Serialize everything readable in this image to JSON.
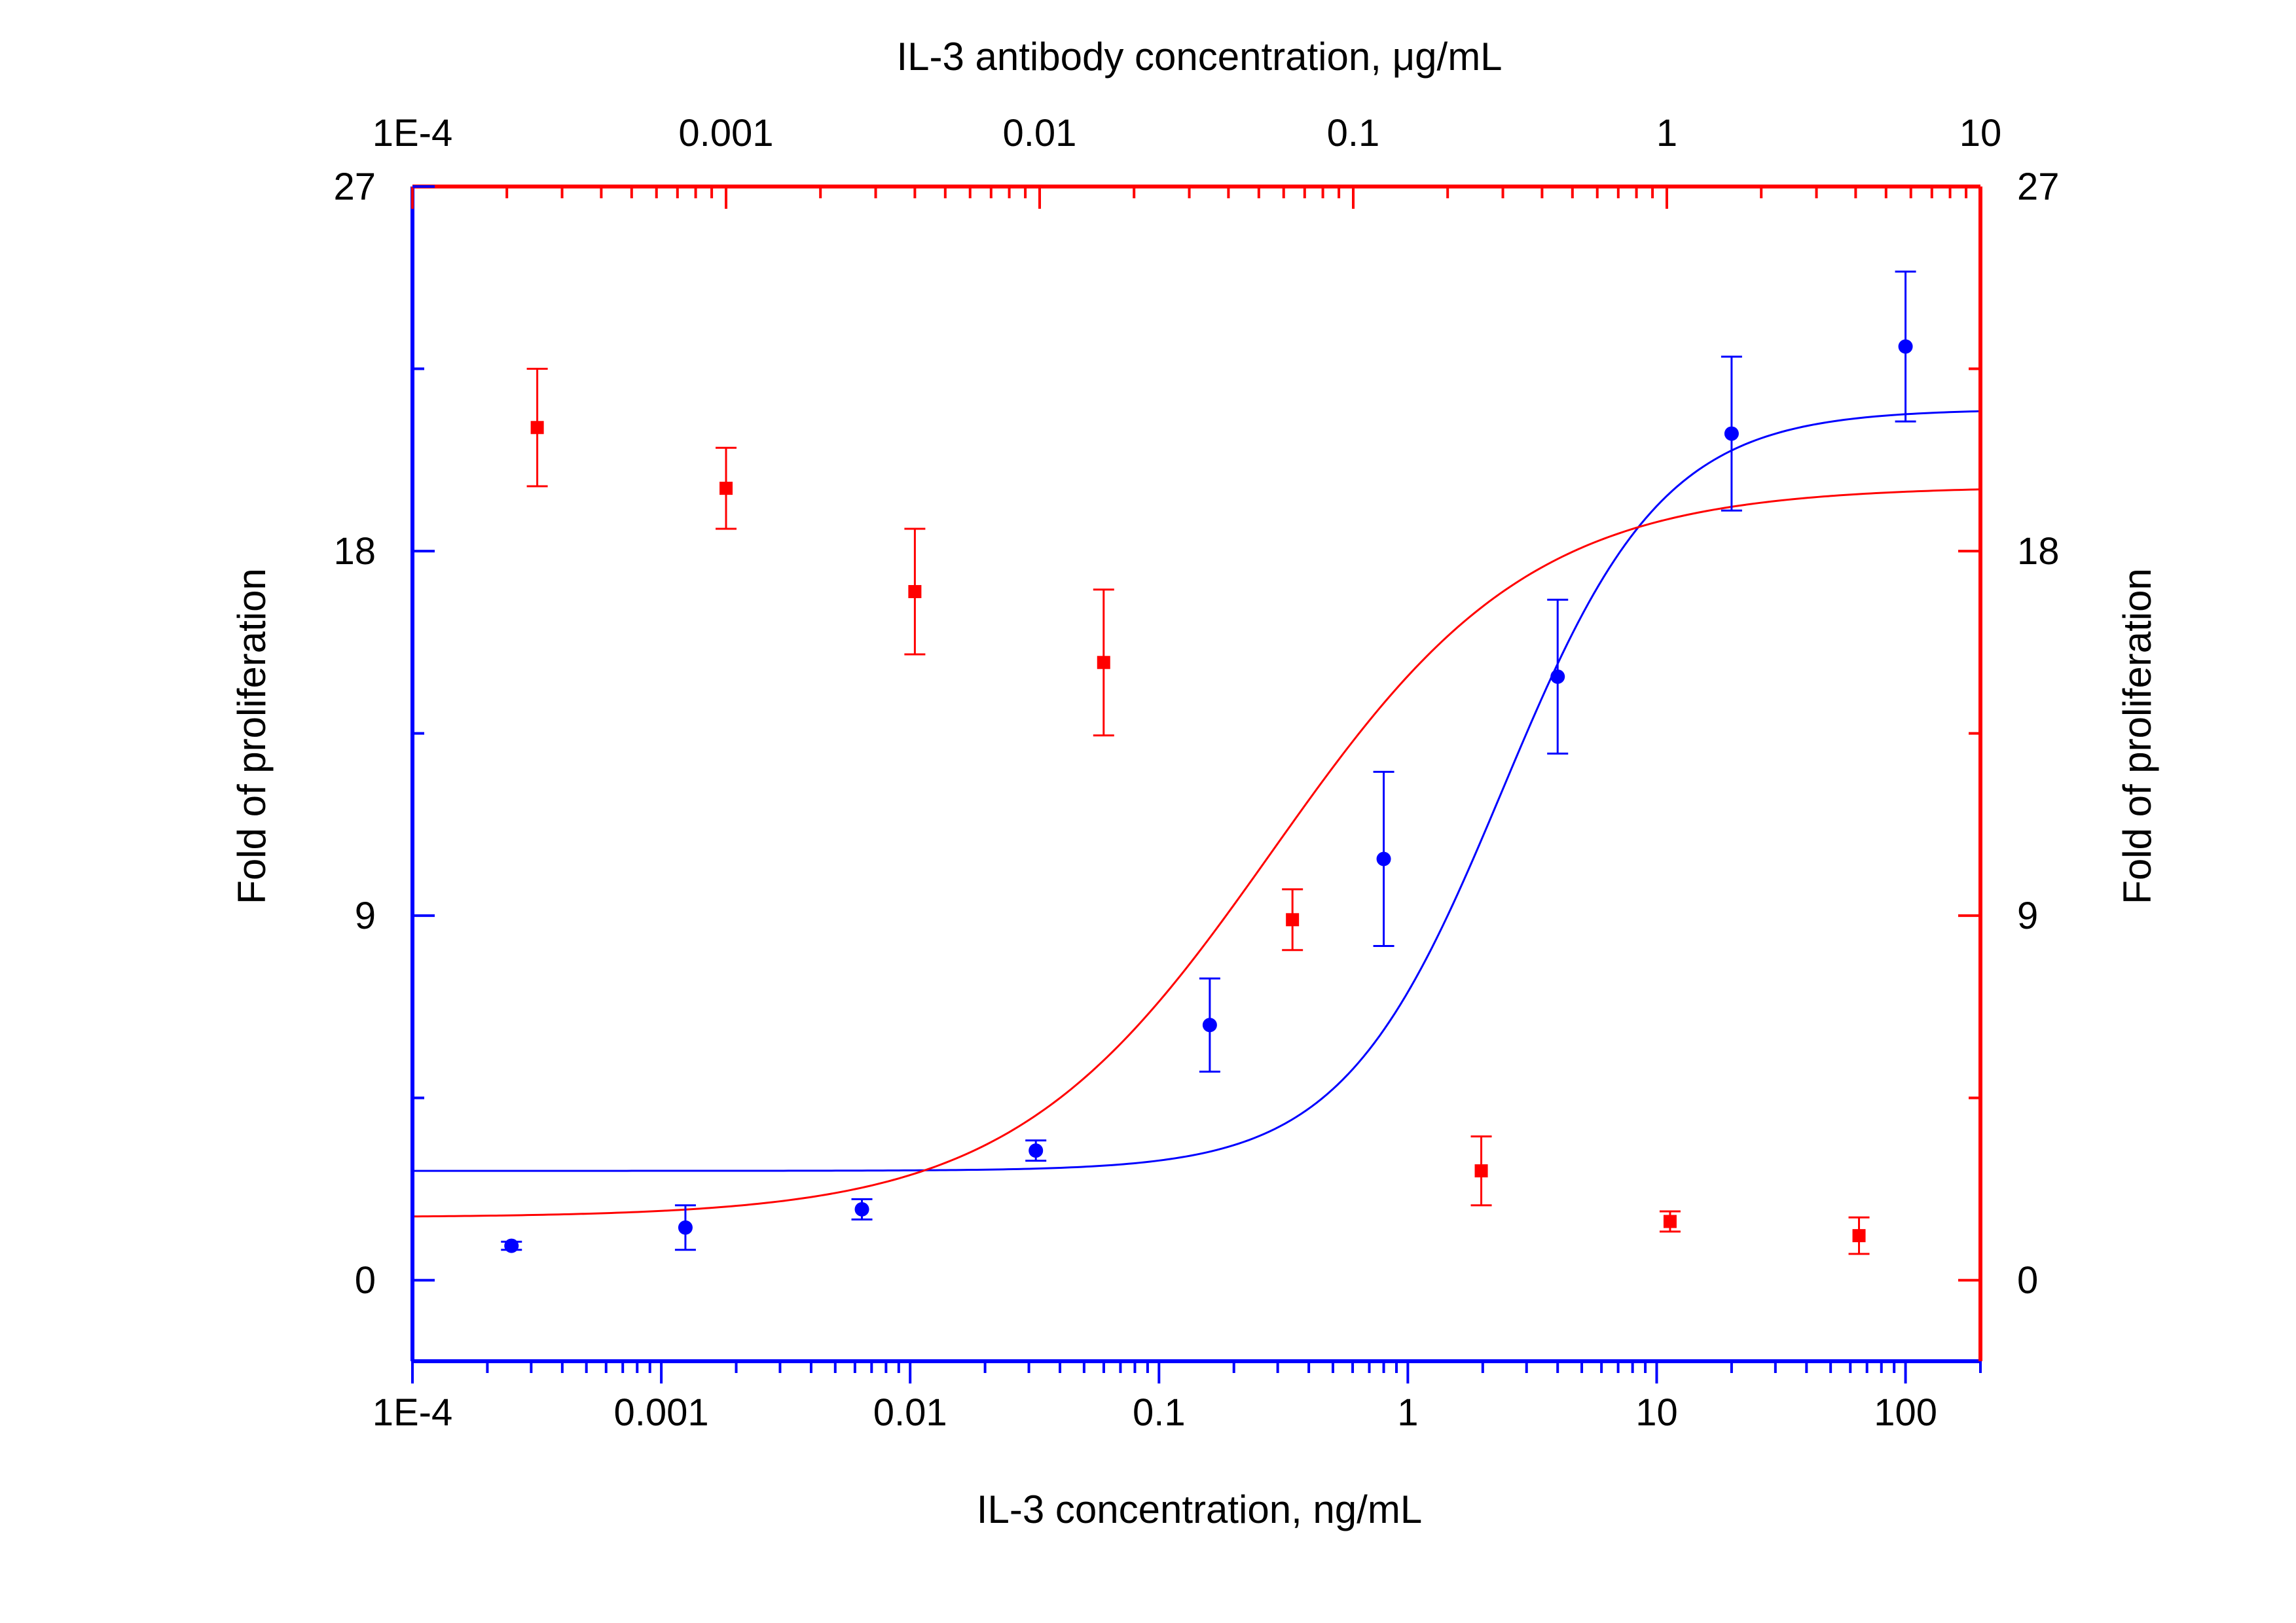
{
  "chart_data": {
    "type": "scatter",
    "colors": {
      "blue": "#0000FF",
      "red": "#FF0000",
      "text": "#000000",
      "background": "#FFFFFF"
    },
    "axes": {
      "bottom": {
        "label": "IL-3 concentration, ng/mL",
        "scale": "log",
        "range": [
          0.0001,
          200
        ],
        "ticks": [
          0.0001,
          0.001,
          0.01,
          0.1,
          1,
          10,
          100
        ],
        "tick_labels": [
          "1E-4",
          "0.001",
          "0.01",
          "0.1",
          "1",
          "10",
          "100"
        ],
        "color": "#0000FF"
      },
      "top": {
        "label": "IL-3 antibody concentration, μg/mL",
        "scale": "log",
        "range": [
          0.0001,
          10
        ],
        "ticks": [
          0.0001,
          0.001,
          0.01,
          0.1,
          1,
          10
        ],
        "tick_labels": [
          "1E-4",
          "0.001",
          "0.01",
          "0.1",
          "1",
          "10"
        ],
        "color": "#FF0000"
      },
      "left": {
        "label": "Fold of proliferation",
        "scale": "linear",
        "range": [
          -2,
          27
        ],
        "ticks": [
          0,
          9,
          18,
          27
        ],
        "tick_labels": [
          "0",
          "9",
          "18",
          "27"
        ],
        "color": "#0000FF"
      },
      "right": {
        "label": "Fold of proliferation",
        "scale": "linear",
        "range": [
          -2,
          27
        ],
        "ticks": [
          0,
          9,
          18,
          27
        ],
        "tick_labels": [
          "0",
          "9",
          "18",
          "27"
        ],
        "color": "#FF0000"
      }
    },
    "series": [
      {
        "marker": "circle",
        "color": "#0000FF",
        "x_axis": "bottom",
        "y_axis": "left",
        "points": [
          {
            "x": 0.00025,
            "y": 0.85,
            "err": 0.1
          },
          {
            "x": 0.00125,
            "y": 1.3,
            "err": 0.55
          },
          {
            "x": 0.0064,
            "y": 1.75,
            "err": 0.25
          },
          {
            "x": 0.032,
            "y": 3.2,
            "err": 0.25
          },
          {
            "x": 0.16,
            "y": 6.3,
            "err": 1.15
          },
          {
            "x": 0.8,
            "y": 10.4,
            "err": 2.15
          },
          {
            "x": 4.0,
            "y": 14.9,
            "err": 1.9
          },
          {
            "x": 20,
            "y": 20.9,
            "err": 1.9
          },
          {
            "x": 100,
            "y": 23.05,
            "err": 1.85
          }
        ],
        "fit": {
          "model": "4PL",
          "bottom": 2.7,
          "top": 21.5,
          "ec50": 2.4,
          "hill": 1.35
        }
      },
      {
        "marker": "square",
        "color": "#FF0000",
        "x_axis": "top",
        "y_axis": "right",
        "points": [
          {
            "x": 0.00025,
            "y": 21.05,
            "err": 1.45
          },
          {
            "x": 0.001,
            "y": 19.55,
            "err": 1.0
          },
          {
            "x": 0.004,
            "y": 17.0,
            "err": 1.55
          },
          {
            "x": 0.016,
            "y": 15.25,
            "err": 1.8
          },
          {
            "x": 0.064,
            "y": 8.9,
            "err": 0.75
          },
          {
            "x": 0.256,
            "y": 2.7,
            "err": 0.85
          },
          {
            "x": 1.024,
            "y": 1.45,
            "err": 0.25
          },
          {
            "x": 4.1,
            "y": 1.1,
            "err": 0.45
          }
        ],
        "fit": {
          "model": "4PL",
          "bottom": 1.55,
          "top": 19.6,
          "ec50": 0.055,
          "hill": 1.05
        }
      }
    ]
  }
}
